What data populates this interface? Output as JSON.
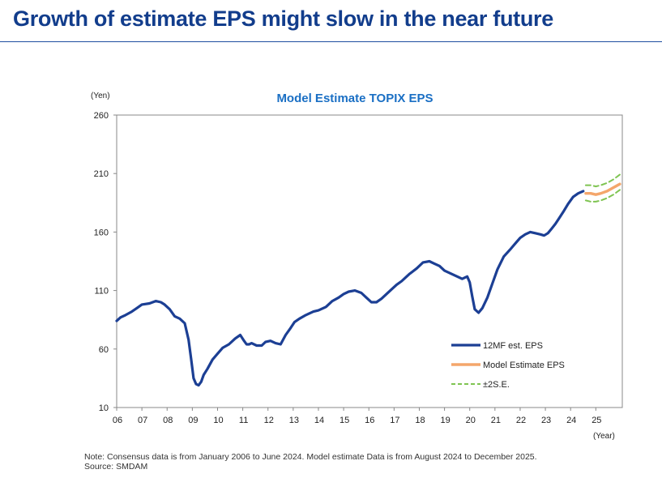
{
  "page": {
    "title": "Growth of estimate EPS might slow in the near future",
    "note": "Note: Consensus data is from January 2006 to June 2024. Model estimate Data is from August 2024 to December 2025.",
    "source": "Source: SMDAM"
  },
  "colors": {
    "title": "#123d8c",
    "chart_title": "#1a6fc4",
    "eps": "#1c3f94",
    "model": "#f4a66b",
    "band": "#7fc452",
    "grid_frame": "#888888"
  },
  "chart_data": {
    "type": "line",
    "title": "Model Estimate TOPIX EPS",
    "ylabel": "(Yen)",
    "xlabel": "(Year)",
    "ylim": [
      10,
      260
    ],
    "yticks": [
      10,
      60,
      110,
      160,
      210,
      260
    ],
    "xlim": [
      2006.0,
      2026.05
    ],
    "xticks": [
      {
        "value": 2006,
        "label": "06"
      },
      {
        "value": 2007,
        "label": "07"
      },
      {
        "value": 2008,
        "label": "08"
      },
      {
        "value": 2009,
        "label": "09"
      },
      {
        "value": 2010,
        "label": "10"
      },
      {
        "value": 2011,
        "label": "11"
      },
      {
        "value": 2012,
        "label": "12"
      },
      {
        "value": 2013,
        "label": "13"
      },
      {
        "value": 2014,
        "label": "14"
      },
      {
        "value": 2015,
        "label": "15"
      },
      {
        "value": 2016,
        "label": "16"
      },
      {
        "value": 2017,
        "label": "17"
      },
      {
        "value": 2018,
        "label": "18"
      },
      {
        "value": 2019,
        "label": "19"
      },
      {
        "value": 2020,
        "label": "20"
      },
      {
        "value": 2021,
        "label": "21"
      },
      {
        "value": 2022,
        "label": "22"
      },
      {
        "value": 2023,
        "label": "23"
      },
      {
        "value": 2024,
        "label": "24"
      },
      {
        "value": 2025,
        "label": "25"
      }
    ],
    "legend": [
      "12MF est. EPS",
      "Model Estimate EPS",
      "±2S.E."
    ],
    "series": [
      {
        "name": "12MF est. EPS",
        "x": [
          2006.0,
          2006.15,
          2006.35,
          2006.6,
          2006.8,
          2007.0,
          2007.3,
          2007.55,
          2007.75,
          2007.9,
          2008.1,
          2008.3,
          2008.5,
          2008.7,
          2008.85,
          2008.95,
          2009.05,
          2009.15,
          2009.25,
          2009.35,
          2009.45,
          2009.6,
          2009.8,
          2010.0,
          2010.2,
          2010.45,
          2010.7,
          2010.9,
          2011.05,
          2011.15,
          2011.25,
          2011.35,
          2011.55,
          2011.75,
          2011.9,
          2012.1,
          2012.3,
          2012.5,
          2012.7,
          2012.9,
          2013.05,
          2013.25,
          2013.5,
          2013.8,
          2014.0,
          2014.3,
          2014.55,
          2014.8,
          2015.0,
          2015.2,
          2015.45,
          2015.7,
          2015.9,
          2016.1,
          2016.3,
          2016.5,
          2016.7,
          2016.9,
          2017.1,
          2017.3,
          2017.6,
          2017.9,
          2018.15,
          2018.4,
          2018.6,
          2018.8,
          2019.0,
          2019.2,
          2019.4,
          2019.7,
          2019.9,
          2020.0,
          2020.1,
          2020.2,
          2020.35,
          2020.5,
          2020.7,
          2020.9,
          2021.1,
          2021.35,
          2021.6,
          2021.8,
          2022.0,
          2022.2,
          2022.4,
          2022.6,
          2022.8,
          2022.95,
          2023.1,
          2023.25,
          2023.4,
          2023.55,
          2023.7,
          2023.9,
          2024.1,
          2024.3,
          2024.5
        ],
        "y": [
          84,
          87,
          89,
          92,
          95,
          98,
          99,
          101,
          100,
          98,
          94,
          88,
          86,
          82,
          68,
          52,
          35,
          30,
          29,
          32,
          38,
          43,
          51,
          56,
          61,
          64,
          69,
          72,
          67,
          64,
          64,
          65,
          63,
          63,
          66,
          67,
          65,
          64,
          72,
          78,
          83,
          86,
          89,
          92,
          93,
          96,
          101,
          104,
          107,
          109,
          110,
          108,
          104,
          100,
          100,
          103,
          107,
          111,
          115,
          118,
          124,
          129,
          134,
          135,
          133,
          131,
          127,
          125,
          123,
          120,
          122,
          117,
          105,
          94,
          91,
          95,
          104,
          116,
          128,
          139,
          145,
          150,
          155,
          158,
          160,
          159,
          158,
          157,
          159,
          163,
          167,
          172,
          177,
          184,
          190,
          193,
          195
        ]
      },
      {
        "name": "Model Estimate EPS",
        "x": [
          2024.6,
          2024.8,
          2025.0,
          2025.2,
          2025.45,
          2025.7,
          2025.95
        ],
        "y": [
          193,
          193,
          192,
          193,
          195,
          198,
          201
        ]
      },
      {
        "name": "±2S.E. upper",
        "x": [
          2024.6,
          2024.8,
          2025.0,
          2025.2,
          2025.45,
          2025.7,
          2025.95
        ],
        "y": [
          200,
          200,
          199,
          200,
          202,
          205,
          209
        ]
      },
      {
        "name": "±2S.E. lower",
        "x": [
          2024.6,
          2024.8,
          2025.0,
          2025.2,
          2025.45,
          2025.7,
          2025.95
        ],
        "y": [
          187,
          186,
          186,
          187,
          189,
          192,
          196
        ]
      }
    ]
  }
}
